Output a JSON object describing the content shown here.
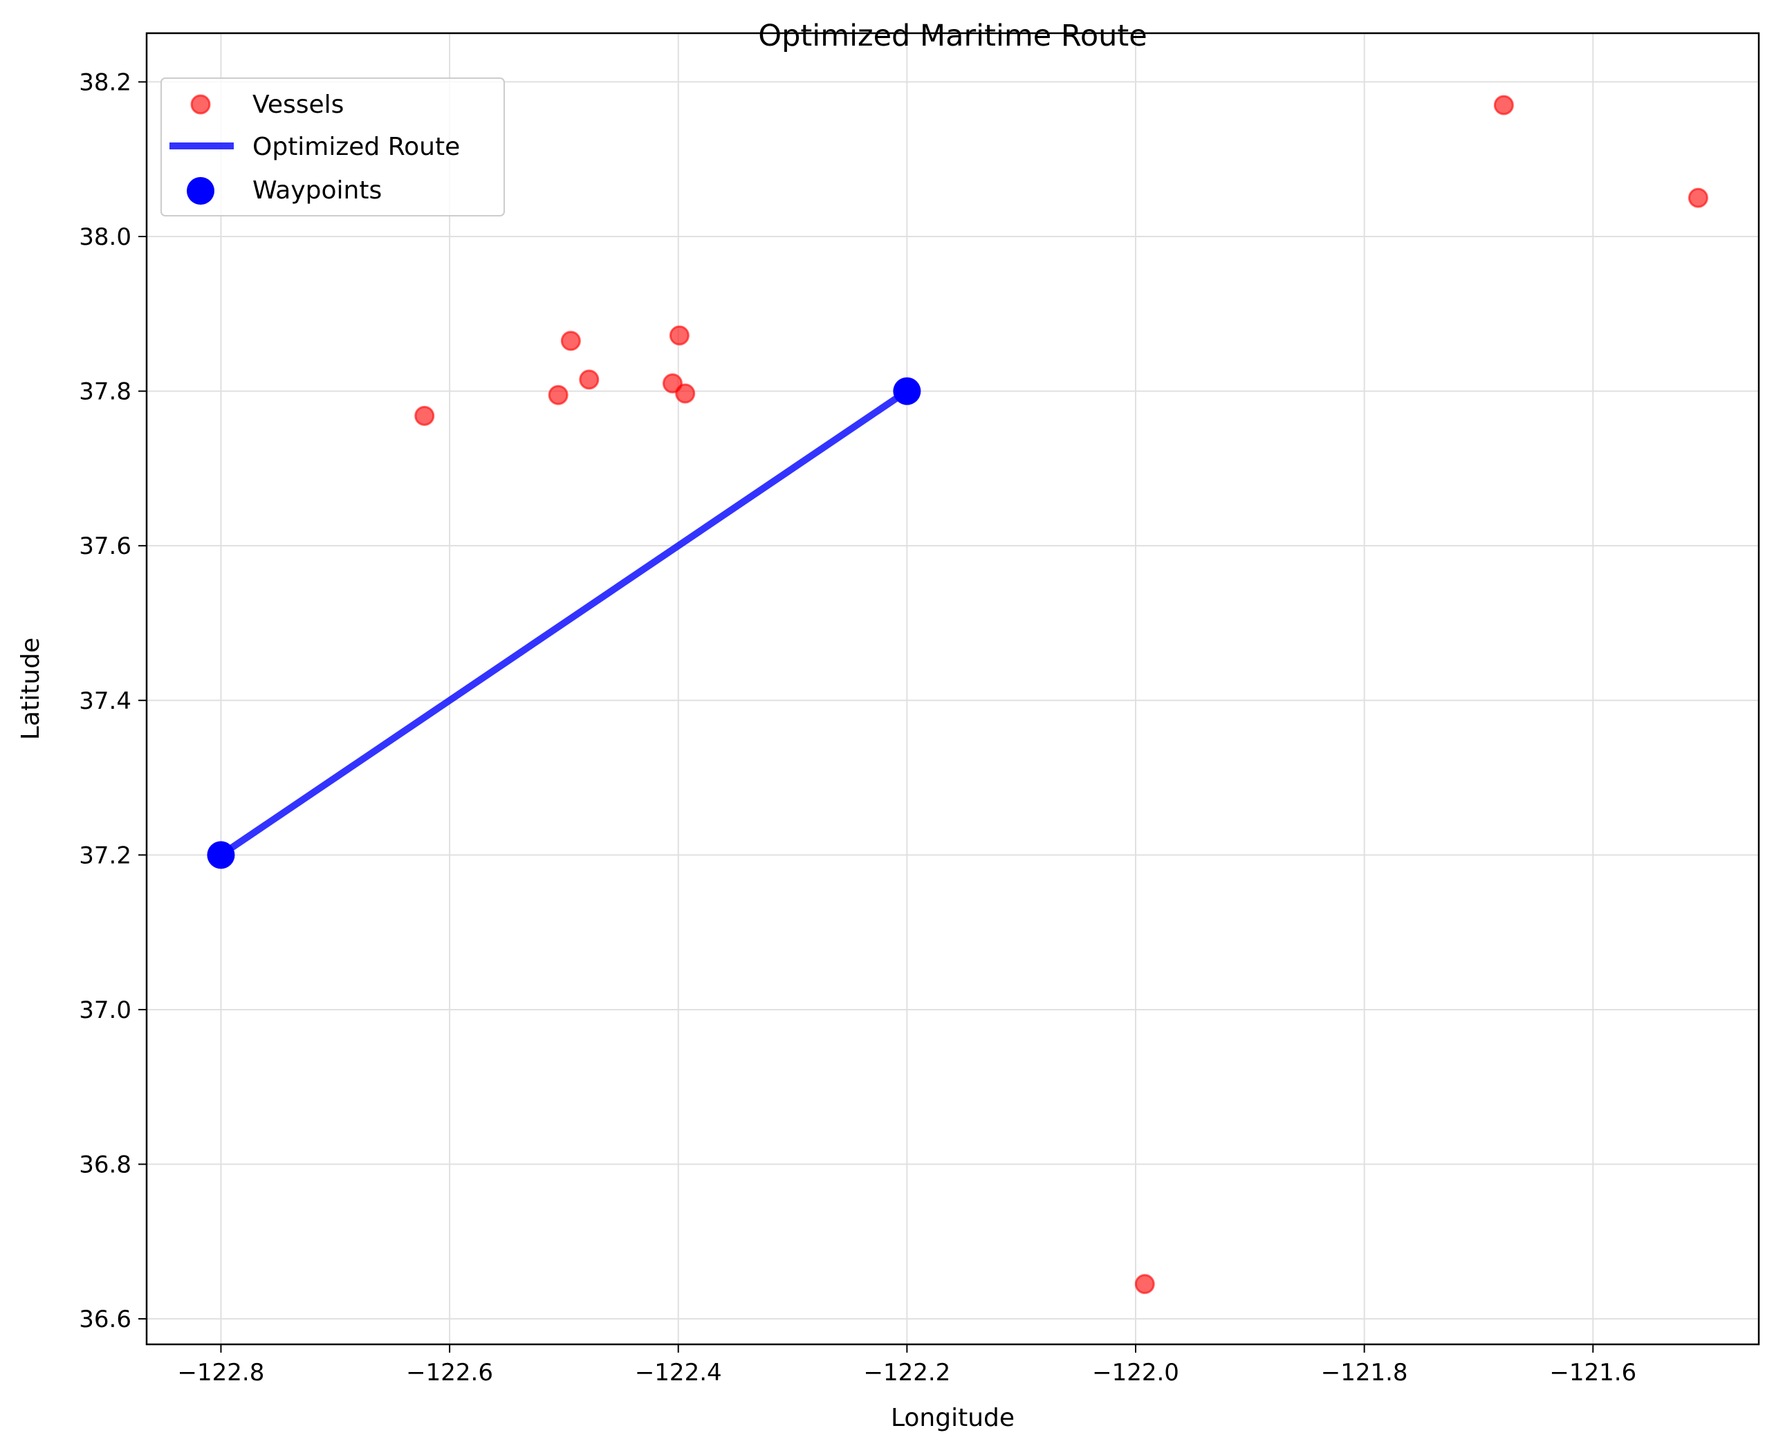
{
  "chart_data": {
    "type": "scatter",
    "title": "Optimized Maritime Route",
    "xlabel": "Longitude",
    "ylabel": "Latitude",
    "xlim": [
      -122.865,
      -121.455
    ],
    "ylim": [
      36.567,
      38.263
    ],
    "x_ticks": [
      -122.8,
      -122.6,
      -122.4,
      -122.2,
      -122.0,
      -121.8,
      -121.6
    ],
    "x_tick_labels": [
      "−122.8",
      "−122.6",
      "−122.4",
      "−122.2",
      "−122.0",
      "−121.8",
      "−121.6"
    ],
    "y_ticks": [
      36.6,
      36.8,
      37.0,
      37.2,
      37.4,
      37.6,
      37.8,
      38.0,
      38.2
    ],
    "y_tick_labels": [
      "36.6",
      "36.8",
      "37.0",
      "37.2",
      "37.4",
      "37.6",
      "37.8",
      "38.0",
      "38.2"
    ],
    "grid": true,
    "legend_position": "top-left",
    "colors": {
      "vessels": "#ff0000",
      "route": "#0000ff",
      "waypoints": "#0000ff",
      "grid": "#e0e0e0"
    },
    "series": [
      {
        "name": "Vessels",
        "kind": "scatter",
        "points": [
          {
            "x": -122.622,
            "y": 37.768
          },
          {
            "x": -122.505,
            "y": 37.795
          },
          {
            "x": -122.494,
            "y": 37.865
          },
          {
            "x": -122.478,
            "y": 37.815
          },
          {
            "x": -122.405,
            "y": 37.81
          },
          {
            "x": -122.399,
            "y": 37.872
          },
          {
            "x": -122.394,
            "y": 37.797
          },
          {
            "x": -121.992,
            "y": 36.645
          },
          {
            "x": -121.678,
            "y": 38.17
          },
          {
            "x": -121.508,
            "y": 38.05
          }
        ]
      },
      {
        "name": "Optimized Route",
        "kind": "line",
        "points": [
          {
            "x": -122.8,
            "y": 37.2
          },
          {
            "x": -122.2,
            "y": 37.8
          }
        ]
      },
      {
        "name": "Waypoints",
        "kind": "scatter",
        "points": [
          {
            "x": -122.8,
            "y": 37.2
          },
          {
            "x": -122.2,
            "y": 37.8
          }
        ]
      }
    ]
  }
}
